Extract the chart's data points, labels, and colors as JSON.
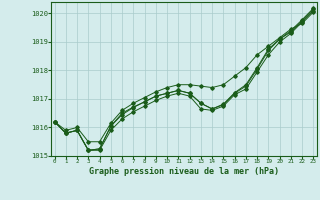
{
  "title": "Graphe pression niveau de la mer (hPa)",
  "hours": [
    0,
    1,
    2,
    3,
    4,
    5,
    6,
    7,
    8,
    9,
    10,
    11,
    12,
    13,
    14,
    15,
    16,
    17,
    18,
    19,
    20,
    21,
    22,
    23
  ],
  "line1": [
    1016.2,
    1015.8,
    1015.9,
    1015.2,
    1015.2,
    1015.9,
    1016.3,
    1016.55,
    1016.75,
    1016.95,
    1017.1,
    1017.2,
    1017.1,
    1016.65,
    1016.6,
    1016.75,
    1017.15,
    1017.35,
    1017.95,
    1018.55,
    1019.0,
    1019.3,
    1019.7,
    1020.1
  ],
  "line2": [
    1016.2,
    1015.9,
    1016.0,
    1015.5,
    1015.5,
    1016.15,
    1016.6,
    1016.85,
    1017.05,
    1017.25,
    1017.4,
    1017.5,
    1017.5,
    1017.45,
    1017.4,
    1017.5,
    1017.8,
    1018.1,
    1018.55,
    1018.85,
    1019.15,
    1019.45,
    1019.65,
    1020.05
  ],
  "line3": [
    1016.2,
    1015.8,
    1015.9,
    1015.2,
    1015.25,
    1016.05,
    1016.45,
    1016.7,
    1016.9,
    1017.1,
    1017.2,
    1017.3,
    1017.2,
    1016.85,
    1016.65,
    1016.8,
    1017.2,
    1017.45,
    1018.05,
    1018.7,
    1019.1,
    1019.35,
    1019.75,
    1020.15
  ],
  "line4": [
    1016.2,
    1015.8,
    1015.9,
    1015.2,
    1015.25,
    1016.05,
    1016.5,
    1016.72,
    1016.9,
    1017.1,
    1017.2,
    1017.3,
    1017.2,
    1016.85,
    1016.65,
    1016.82,
    1017.22,
    1017.5,
    1018.1,
    1018.75,
    1019.1,
    1019.4,
    1019.78,
    1020.18
  ],
  "ylim": [
    1015.0,
    1020.4
  ],
  "yticks": [
    1015,
    1016,
    1017,
    1018,
    1019,
    1020
  ],
  "line_color": "#1a5c1a",
  "bg_color": "#d4ecec",
  "grid_color": "#aacccc"
}
